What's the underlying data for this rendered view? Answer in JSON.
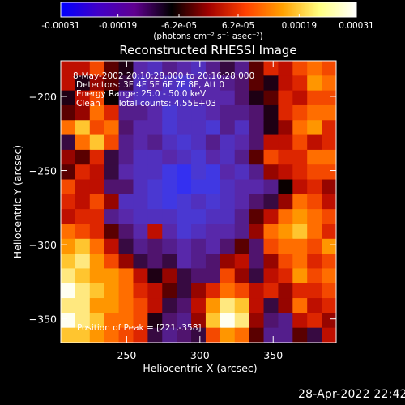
{
  "chart_data": {
    "type": "heatmap",
    "title": "Reconstructed RHESSI Image",
    "xlabel": "Heliocentric X (arcsec)",
    "ylabel": "Heliocentric Y (arcsec)",
    "xlim": [
      205,
      393
    ],
    "ylim": [
      -366,
      -176
    ],
    "x_ticks": [
      250,
      300,
      350
    ],
    "y_ticks": [
      -350,
      -300,
      -250,
      -200
    ],
    "colorbar": {
      "range": [
        -0.00031,
        0.00031
      ],
      "tick_values": [
        -0.00031,
        -0.00019,
        -6.2e-05,
        6.2e-05,
        0.00019,
        0.00031
      ],
      "tick_labels": [
        "-0.00031",
        "-0.00019",
        "-6.2e-05",
        "6.2e-05",
        "0.00019",
        "0.00031"
      ],
      "unit_label": "(photons cm⁻² s⁻¹ asec⁻²)",
      "colors": [
        "#0000ff",
        "#4000c8",
        "#600090",
        "#000000",
        "#a00000",
        "#ff4000",
        "#ffa000",
        "#ffff80",
        "#ffffff"
      ]
    },
    "annotations": {
      "time_range": "8-May-2002 20:10:28.000 to 20:16:28.000",
      "detectors": "Detectors: 3F 4F 5F 6F 7F 8F, Att 0",
      "energy_range": "Energy Range: 25.0 - 50.0 keV",
      "method": "Clean",
      "total_counts": "Total counts: 4.55E+03",
      "peak_position": "Position of Peak = [221,-358]"
    },
    "grid": {
      "rows": 19,
      "cols": 19
    },
    "values": [
      [
        0.3,
        0.3,
        0.5,
        0.1,
        -0.1,
        -0.5,
        -0.6,
        -0.4,
        -0.5,
        -0.6,
        -0.4,
        -0.2,
        -0.4,
        0.1,
        0.4,
        0.3,
        0.5,
        0.6,
        0.5
      ],
      [
        0.3,
        -0.1,
        0.2,
        0.1,
        -0.2,
        -0.6,
        -0.5,
        -0.6,
        -0.7,
        -0.5,
        -0.5,
        -0.4,
        -0.3,
        0.1,
        -0.1,
        0.3,
        0.4,
        0.7,
        0.6
      ],
      [
        -0.1,
        0.3,
        0.5,
        0.0,
        -0.5,
        -0.6,
        -0.6,
        -0.6,
        -0.6,
        -0.5,
        -0.5,
        -0.5,
        -0.3,
        -0.1,
        0.1,
        0.4,
        0.3,
        0.5,
        0.5
      ],
      [
        0.1,
        0.2,
        0.6,
        0.4,
        -0.4,
        -0.4,
        -0.5,
        -0.7,
        -0.6,
        -0.6,
        -0.5,
        -0.4,
        -0.4,
        -0.3,
        -0.1,
        0.4,
        0.5,
        0.6,
        0.6
      ],
      [
        0.6,
        0.8,
        0.5,
        0.6,
        -0.3,
        -0.5,
        -0.5,
        -0.7,
        -0.6,
        -0.6,
        -0.7,
        -0.4,
        -0.6,
        -0.3,
        -0.1,
        0.2,
        0.6,
        0.7,
        0.4
      ],
      [
        -0.2,
        0.6,
        0.8,
        0.5,
        -0.4,
        -0.5,
        -0.4,
        -0.6,
        -0.7,
        -0.6,
        -0.4,
        -0.6,
        -0.5,
        -0.3,
        0.3,
        0.3,
        0.5,
        0.3,
        0.4
      ],
      [
        0.2,
        0.1,
        0.4,
        -0.2,
        -0.4,
        -0.6,
        -0.6,
        -0.5,
        -0.6,
        -0.7,
        -0.5,
        -0.6,
        -0.4,
        0.1,
        0.5,
        0.4,
        0.4,
        0.6,
        0.6
      ],
      [
        0.1,
        0.4,
        0.3,
        -0.2,
        -0.5,
        -0.6,
        -0.6,
        -0.8,
        -0.9,
        -0.7,
        -0.8,
        -0.5,
        -0.6,
        -0.4,
        0.2,
        0.3,
        0.4,
        0.5,
        0.5
      ],
      [
        0.5,
        0.3,
        0.3,
        -0.3,
        -0.3,
        -0.6,
        -0.7,
        -0.8,
        -0.9,
        -0.8,
        -0.8,
        -0.6,
        -0.5,
        -0.5,
        -0.4,
        0.0,
        0.3,
        0.4,
        0.2
      ],
      [
        0.4,
        0.3,
        0.5,
        0.2,
        -0.6,
        -0.6,
        -0.7,
        -0.8,
        -0.7,
        -0.6,
        -0.7,
        -0.6,
        -0.5,
        -0.3,
        -0.2,
        0.2,
        0.6,
        0.5,
        0.3
      ],
      [
        0.3,
        0.4,
        0.4,
        -0.4,
        -0.5,
        -0.6,
        -0.6,
        -0.6,
        -0.7,
        -0.7,
        -0.6,
        -0.6,
        -0.4,
        0.1,
        0.3,
        0.6,
        0.7,
        0.6,
        0.5
      ],
      [
        0.6,
        0.5,
        0.4,
        0.1,
        -0.3,
        -0.5,
        0.3,
        -0.5,
        -0.7,
        -0.6,
        -0.5,
        -0.5,
        -0.4,
        0.2,
        0.6,
        0.7,
        0.8,
        0.6,
        0.4
      ],
      [
        0.7,
        0.8,
        0.6,
        0.3,
        -0.2,
        -0.4,
        -0.3,
        -0.4,
        -0.5,
        -0.4,
        -0.5,
        -0.3,
        0.1,
        -0.3,
        0.5,
        0.6,
        0.6,
        0.5,
        0.7
      ],
      [
        0.8,
        0.9,
        0.7,
        0.5,
        0.2,
        -0.2,
        -0.3,
        -0.2,
        -0.5,
        -0.4,
        -0.3,
        0.2,
        0.3,
        -0.3,
        0.2,
        0.5,
        0.6,
        0.4,
        0.5
      ],
      [
        0.9,
        0.8,
        0.7,
        0.7,
        0.6,
        0.3,
        -0.1,
        0.2,
        -0.2,
        -0.3,
        -0.3,
        0.5,
        0.2,
        -0.2,
        0.3,
        0.4,
        0.7,
        0.5,
        0.6
      ],
      [
        1.0,
        0.9,
        0.8,
        0.7,
        0.6,
        0.4,
        0.3,
        0.1,
        -0.2,
        0.2,
        0.4,
        0.6,
        0.5,
        0.3,
        0.4,
        0.2,
        0.4,
        0.4,
        0.5
      ],
      [
        0.9,
        0.9,
        0.7,
        0.7,
        0.6,
        0.5,
        0.3,
        -0.2,
        -0.3,
        0.3,
        0.7,
        0.9,
        0.8,
        0.3,
        -0.2,
        0.2,
        0.6,
        0.3,
        0.4
      ],
      [
        1.0,
        0.9,
        0.8,
        0.6,
        0.6,
        0.5,
        -0.1,
        -0.3,
        -0.4,
        0.2,
        0.8,
        1.0,
        0.9,
        0.2,
        -0.3,
        -0.4,
        0.3,
        0.4,
        0.2
      ],
      [
        0.8,
        0.8,
        0.7,
        0.6,
        0.5,
        0.4,
        -0.2,
        -0.4,
        -0.3,
        -0.2,
        0.5,
        0.7,
        0.6,
        0.1,
        -0.4,
        -0.4,
        0.1,
        -0.2,
        0.3
      ]
    ]
  },
  "footer": {
    "timestamp": "28-Apr-2022 22:42"
  }
}
